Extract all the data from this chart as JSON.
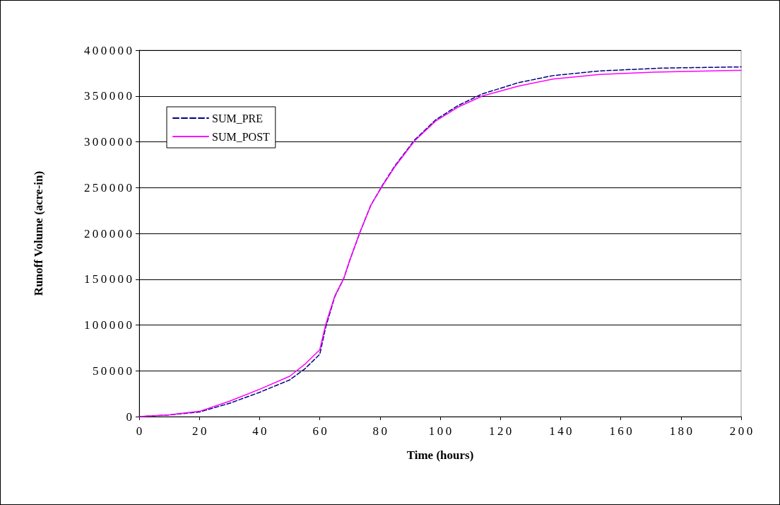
{
  "chart_data": {
    "type": "line",
    "xlabel": "Time (hours)",
    "ylabel": "Runoff Volume (acre-in)",
    "xlim": [
      0,
      200
    ],
    "xticks": [
      0,
      20,
      40,
      60,
      80,
      100,
      120,
      140,
      160,
      180,
      200
    ],
    "ylim": [
      0,
      400000
    ],
    "yticks": [
      0,
      50000,
      100000,
      150000,
      200000,
      250000,
      300000,
      350000,
      400000
    ],
    "grid": "y",
    "legend": "top left",
    "marker": "none",
    "series": [
      {
        "name": "SUM_PRE",
        "color": "#000080",
        "line_style": "dashed",
        "x": [
          0,
          10,
          20,
          30,
          40,
          50,
          55,
          60,
          62,
          65,
          68,
          70,
          73.5,
          77,
          81,
          85,
          91.5,
          98.5,
          106,
          114,
          126,
          137.5,
          153,
          174,
          200
        ],
        "values": [
          0,
          1800,
          5000,
          14500,
          26500,
          40000,
          52000,
          68000,
          98000,
          131000,
          151000,
          171000,
          202500,
          231000,
          253500,
          274000,
          302000,
          324000,
          339700,
          352300,
          364600,
          372300,
          377400,
          380500,
          381800
        ]
      },
      {
        "name": "SUM_POST",
        "color": "#ff00ff",
        "line_style": "solid",
        "x": [
          0,
          10,
          20,
          30,
          40,
          50,
          55,
          60,
          62,
          65,
          68,
          70,
          73.5,
          77,
          81,
          85,
          91.5,
          98.5,
          106,
          114,
          126,
          137.5,
          153,
          171,
          198,
          200
        ],
        "values": [
          0,
          2000,
          5700,
          16800,
          29800,
          44000,
          57000,
          73000,
          101000,
          131800,
          151000,
          171000,
          202500,
          231000,
          252800,
          273000,
          301000,
          322700,
          338000,
          350000,
          360800,
          368500,
          373600,
          376000,
          378000,
          378000
        ]
      }
    ]
  }
}
